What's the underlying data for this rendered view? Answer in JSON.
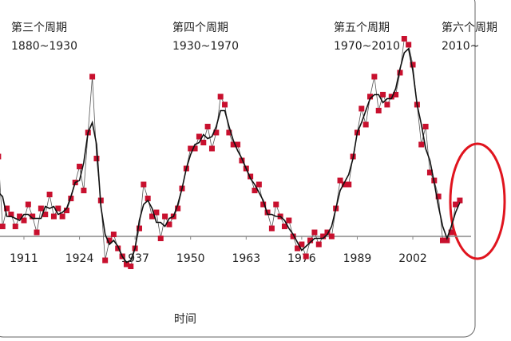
{
  "chart_data": {
    "type": "line",
    "annotations": [
      {
        "title": "第三个周期",
        "period": "1880~1930"
      },
      {
        "title": "第四个周期",
        "period": "1930~1970"
      },
      {
        "title": "第五个周期",
        "period": "1970~2010"
      },
      {
        "title": "第六个周期",
        "period": "2010~"
      }
    ],
    "xlabel": "时间",
    "x": [
      1905,
      1906,
      1907,
      1908,
      1909,
      1910,
      1911,
      1912,
      1913,
      1914,
      1915,
      1916,
      1917,
      1918,
      1919,
      1920,
      1921,
      1922,
      1923,
      1924,
      1925,
      1926,
      1927,
      1928,
      1929,
      1930,
      1931,
      1932,
      1933,
      1934,
      1935,
      1936,
      1937,
      1938,
      1939,
      1940,
      1941,
      1942,
      1943,
      1944,
      1945,
      1946,
      1947,
      1948,
      1949,
      1950,
      1951,
      1952,
      1953,
      1954,
      1955,
      1956,
      1957,
      1958,
      1959,
      1960,
      1961,
      1962,
      1963,
      1964,
      1965,
      1966,
      1967,
      1968,
      1969,
      1970,
      1971,
      1972,
      1973,
      1974,
      1975,
      1976,
      1977,
      1978,
      1979,
      1980,
      1981,
      1982,
      1983,
      1984,
      1985,
      1986,
      1987,
      1988,
      1989,
      1990,
      1991,
      1992,
      1993,
      1994,
      1995,
      1996,
      1997,
      1998,
      1999,
      2000,
      2001,
      2002,
      2003,
      2004,
      2005,
      2006,
      2007,
      2008,
      2009,
      2010,
      2011,
      2012,
      2013
    ],
    "series": [
      {
        "color": "#c8102e",
        "marker": "square",
        "values": [
          40,
          5,
          14,
          11,
          5,
          10,
          8,
          16,
          10,
          2,
          14,
          11,
          21,
          10,
          14,
          10,
          13,
          19,
          27,
          35,
          23,
          52,
          80,
          39,
          18,
          -12,
          -2,
          1,
          -6,
          -10,
          -14,
          -15,
          -6,
          4,
          26,
          19,
          10,
          12,
          -1,
          10,
          6,
          10,
          14,
          24,
          34,
          44,
          44,
          50,
          47,
          55,
          44,
          52,
          70,
          66,
          52,
          46,
          46,
          38,
          34,
          30,
          23,
          26,
          16,
          12,
          4,
          16,
          10,
          5,
          8,
          0,
          -6,
          -4,
          -10,
          -2,
          2,
          -4,
          0,
          2,
          0,
          14,
          28,
          26,
          26,
          40,
          52,
          64,
          56,
          70,
          80,
          63,
          71,
          66,
          70,
          71,
          82,
          99,
          96,
          86,
          66,
          46,
          55,
          32,
          28,
          20,
          -2,
          -2,
          2,
          16,
          18
        ]
      },
      {
        "color": "#111111",
        "values": [
          22,
          20,
          10,
          10,
          9,
          8,
          11,
          11,
          9,
          9,
          9,
          15,
          14,
          15,
          11,
          12,
          14,
          20,
          27,
          28,
          37,
          52,
          57,
          46,
          15,
          1,
          -4,
          -2,
          -5,
          -10,
          -13,
          -12,
          -6,
          8,
          16,
          18,
          14,
          7,
          7,
          5,
          9,
          10,
          16,
          24,
          34,
          41,
          46,
          47,
          51,
          49,
          50,
          55,
          63,
          63,
          55,
          48,
          43,
          39,
          34,
          29,
          26,
          22,
          18,
          11,
          11,
          10,
          10,
          8,
          4,
          1,
          -3,
          -7,
          -5,
          -3,
          -1,
          -1,
          -1,
          1,
          5,
          14,
          23,
          27,
          31,
          39,
          52,
          57,
          63,
          69,
          71,
          71,
          67,
          69,
          69,
          74,
          84,
          92,
          94,
          83,
          66,
          56,
          44,
          38,
          27,
          15,
          5,
          -1,
          5,
          12,
          17
        ]
      }
    ],
    "xlim": [
      1905.4,
      2017.5
    ],
    "xticks": [
      1911,
      1924,
      1937,
      1950,
      1963,
      1976,
      1989,
      2002
    ],
    "ylim": [
      -41.6,
      118.4
    ]
  }
}
